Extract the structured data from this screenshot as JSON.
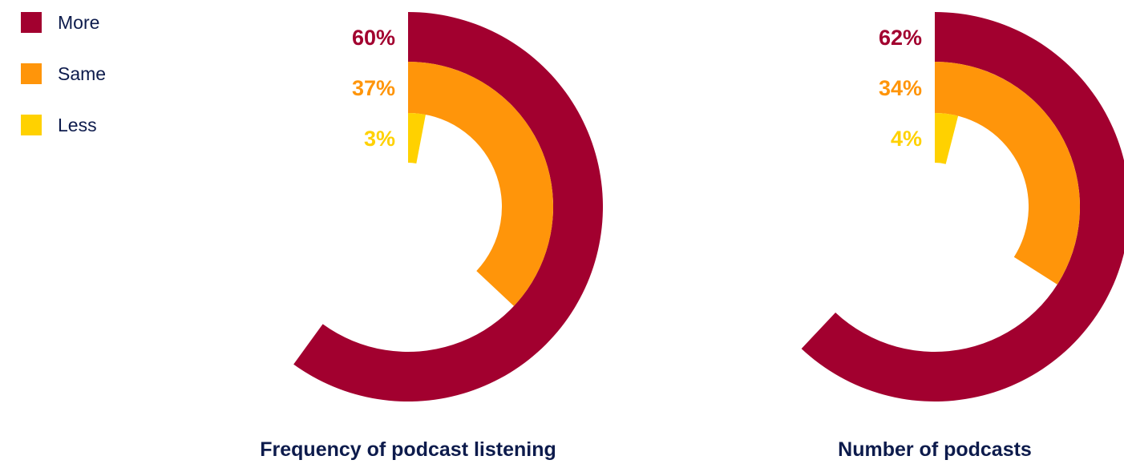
{
  "legend": [
    {
      "label": "More",
      "color": "#a2002f"
    },
    {
      "label": "Same",
      "color": "#ff950a"
    },
    {
      "label": "Less",
      "color": "#ffd100"
    }
  ],
  "chart_data": [
    {
      "type": "radial-bar",
      "title": "Frequency of podcast listening",
      "categories": [
        "More",
        "Same",
        "Less"
      ],
      "values": [
        60,
        37,
        3
      ],
      "value_labels": [
        "60%",
        "37%",
        "3%"
      ],
      "colors": [
        "#a2002f",
        "#ff950a",
        "#ffd100"
      ]
    },
    {
      "type": "radial-bar",
      "title": "Number of podcasts",
      "categories": [
        "More",
        "Same",
        "Less"
      ],
      "values": [
        62,
        34,
        4
      ],
      "value_labels": [
        "62%",
        "34%",
        "4%"
      ],
      "colors": [
        "#a2002f",
        "#ff950a",
        "#ffd100"
      ]
    }
  ]
}
